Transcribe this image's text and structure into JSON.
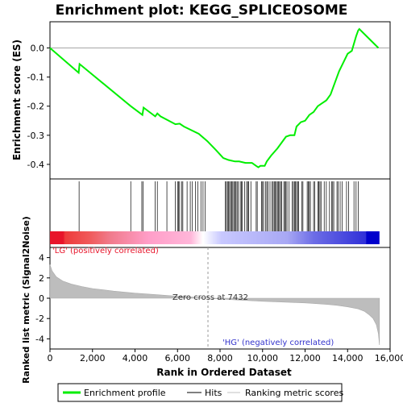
{
  "chart_data": {
    "type": "line",
    "title": "Enrichment plot: KEGG_SPLICEOSOME",
    "xlabel": "Rank in Ordered Dataset",
    "ylabel_top": "Enrichment score (ES)",
    "ylabel_bottom": "Ranked list metric (Signal2Noise)",
    "xlim": [
      0,
      16000
    ],
    "ylim_es": [
      -0.45,
      0.09
    ],
    "ylim_metric": [
      -5,
      5
    ],
    "x_ticks": [
      0,
      2000,
      4000,
      6000,
      8000,
      10000,
      12000,
      14000,
      16000
    ],
    "x_tick_labels": [
      "0",
      "2,000",
      "4,000",
      "6,000",
      "8,000",
      "10,000",
      "12,000",
      "14,000",
      "16,000"
    ],
    "es_ticks": [
      0.0,
      -0.1,
      -0.2,
      -0.3,
      -0.4
    ],
    "es_tick_labels": [
      "0.0",
      "-0.1",
      "-0.2",
      "-0.3",
      "-0.4"
    ],
    "metric_ticks": [
      4,
      2,
      0,
      -2,
      -4
    ],
    "metric_tick_labels": [
      "4",
      "2",
      "0",
      "-2",
      "-4"
    ],
    "annotations": {
      "lg": "'LG' (positively correlated)",
      "hg": "'HG' (negatively correlated)",
      "zero_cross": "Zero cross at 7432"
    },
    "zero_cross": 7432,
    "series": [
      {
        "name": "Enrichment profile",
        "color": "#00ee00",
        "x": [
          0,
          1350,
          1390,
          3800,
          4350,
          4400,
          4950,
          5050,
          5200,
          5900,
          6100,
          6300,
          7000,
          7400,
          7800,
          8150,
          8400,
          8700,
          8900,
          9200,
          9500,
          9700,
          9800,
          9900,
          10100,
          10200,
          10400,
          10700,
          10900,
          11100,
          11300,
          11500,
          11600,
          11800,
          12000,
          12200,
          12400,
          12600,
          12800,
          13000,
          13200,
          13400,
          13600,
          13800,
          14000,
          14200,
          14400,
          14500,
          14550,
          15450
        ],
        "y": [
          0.0,
          -0.085,
          -0.055,
          -0.2,
          -0.23,
          -0.205,
          -0.235,
          -0.225,
          -0.235,
          -0.262,
          -0.26,
          -0.27,
          -0.295,
          -0.32,
          -0.35,
          -0.378,
          -0.385,
          -0.39,
          -0.39,
          -0.395,
          -0.395,
          -0.405,
          -0.41,
          -0.405,
          -0.405,
          -0.39,
          -0.37,
          -0.345,
          -0.325,
          -0.305,
          -0.3,
          -0.3,
          -0.27,
          -0.255,
          -0.25,
          -0.23,
          -0.22,
          -0.2,
          -0.19,
          -0.18,
          -0.16,
          -0.12,
          -0.08,
          -0.05,
          -0.02,
          -0.01,
          0.04,
          0.06,
          0.065,
          0.0
        ]
      }
    ],
    "hits": [
      1370,
      3800,
      4320,
      4380,
      4950,
      5050,
      5500,
      5900,
      6000,
      6050,
      6100,
      6200,
      6250,
      6450,
      6600,
      6700,
      6850,
      6950,
      7100,
      7200,
      7300,
      8250,
      8300,
      8350,
      8400,
      8450,
      8500,
      8550,
      8600,
      8650,
      8700,
      8750,
      8800,
      8850,
      8950,
      9000,
      9050,
      9150,
      9250,
      9300,
      9350,
      9450,
      9700,
      9750,
      9950,
      10000,
      10050,
      10150,
      10200,
      10250,
      10350,
      10450,
      10500,
      10550,
      10600,
      10650,
      10700,
      10750,
      10800,
      10850,
      10900,
      11000,
      11050,
      11100,
      11150,
      11250,
      11400,
      11450,
      11500,
      11550,
      11600,
      11650,
      11700,
      11850,
      11900,
      12100,
      12150,
      12200,
      12250,
      12400,
      12450,
      12600,
      12650,
      12700,
      12750,
      12900,
      13000,
      13150,
      13250,
      13300,
      13350,
      13500,
      13550,
      13650,
      13750,
      13950,
      14050,
      14300,
      14400,
      14500
    ],
    "metric_curve": {
      "x": [
        0,
        100,
        300,
        600,
        1000,
        1500,
        2000,
        3000,
        4000,
        5000,
        6000,
        7000,
        7432,
        8000,
        9000,
        10000,
        11000,
        12000,
        13000,
        13500,
        14000,
        14500,
        14800,
        15000,
        15200,
        15350,
        15450,
        15500
      ],
      "y": [
        3.3,
        2.7,
        2.1,
        1.7,
        1.4,
        1.15,
        0.95,
        0.7,
        0.5,
        0.35,
        0.2,
        0.07,
        0.0,
        -0.08,
        -0.2,
        -0.3,
        -0.38,
        -0.46,
        -0.6,
        -0.7,
        -0.85,
        -1.05,
        -1.3,
        -1.6,
        -2.0,
        -2.6,
        -3.5,
        -4.6
      ]
    },
    "bar_colors": {
      "red": "#e8142a",
      "pink": "#ffb6d9",
      "light_blue": "#c8c8ff",
      "blue": "#0000cc"
    },
    "legend": {
      "placement": "bottom",
      "items": [
        {
          "label": "Enrichment profile",
          "color": "#00ee00"
        },
        {
          "label": "Hits",
          "color": "#000000"
        },
        {
          "label": "Ranking metric scores",
          "color": "#c0c0c0"
        }
      ]
    }
  }
}
